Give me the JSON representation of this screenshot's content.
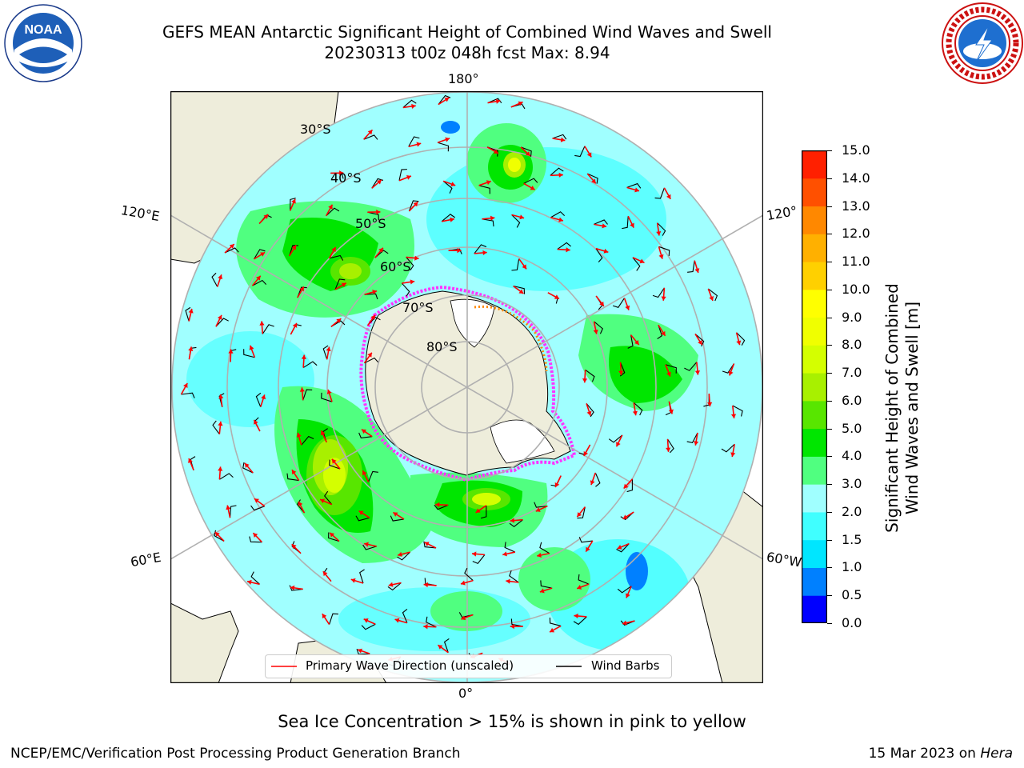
{
  "title": {
    "line1": "GEFS MEAN Antarctic Significant Height of Combined Wind Waves and Swell",
    "line2": "20230313 t00z 048h fcst   Max: 8.94"
  },
  "logos": {
    "left": {
      "name": "noaa-logo",
      "text": "NOAA",
      "ring_text": "NATIONAL OCEANIC AND ATMOSPHERIC ADMINISTRATION · U.S. DEPARTMENT OF COMMERCE"
    },
    "right": {
      "name": "nws-logo",
      "ring_text": "NATIONAL WEATHER SERVICE"
    }
  },
  "map": {
    "projection": "south-polar-stereographic",
    "longitude_labels": {
      "top": "180°",
      "bottom": "0°",
      "left_upper": "120°E",
      "left_lower": "60°E",
      "right_upper": "120°",
      "right_lower": "60°W"
    },
    "latitude_labels": [
      "30°S",
      "40°S",
      "50°S",
      "60°S",
      "70°S",
      "80°S"
    ],
    "colors": {
      "land": "#eeeddb",
      "ocean_low": "#a0ffff",
      "grid": "#b0b0b0",
      "ice_edge": "#ff33ff",
      "wave_arrow": "#ff0000",
      "wind_barb": "#000000"
    }
  },
  "colorbar": {
    "label_line1": "Significant Height of Combined",
    "label_line2": "Wind Waves and Swell [m]",
    "ticks": [
      "0.0",
      "0.5",
      "1.0",
      "1.5",
      "2.0",
      "3.0",
      "4.0",
      "5.0",
      "6.0",
      "7.0",
      "8.0",
      "9.0",
      "10.0",
      "11.0",
      "12.0",
      "13.0",
      "14.0",
      "15.0"
    ],
    "colors": [
      "#0000ff",
      "#0080ff",
      "#00e6ff",
      "#40ffff",
      "#a0ffff",
      "#50ff80",
      "#00e600",
      "#58e600",
      "#a8f000",
      "#d4ff00",
      "#f0ff00",
      "#ffff00",
      "#ffd000",
      "#ffb000",
      "#ff8800",
      "#ff5000",
      "#ff2000"
    ]
  },
  "legend": {
    "wave_label": "Primary Wave Direction (unscaled)",
    "barb_label": "Wind Barbs"
  },
  "footer": {
    "note": "Sea Ice Concentration > 15% is shown in pink to yellow",
    "left": "NCEP/EMC/Verification Post Processing Product Generation Branch",
    "right_date": "15 Mar 2023 on",
    "right_host": "Hera"
  }
}
